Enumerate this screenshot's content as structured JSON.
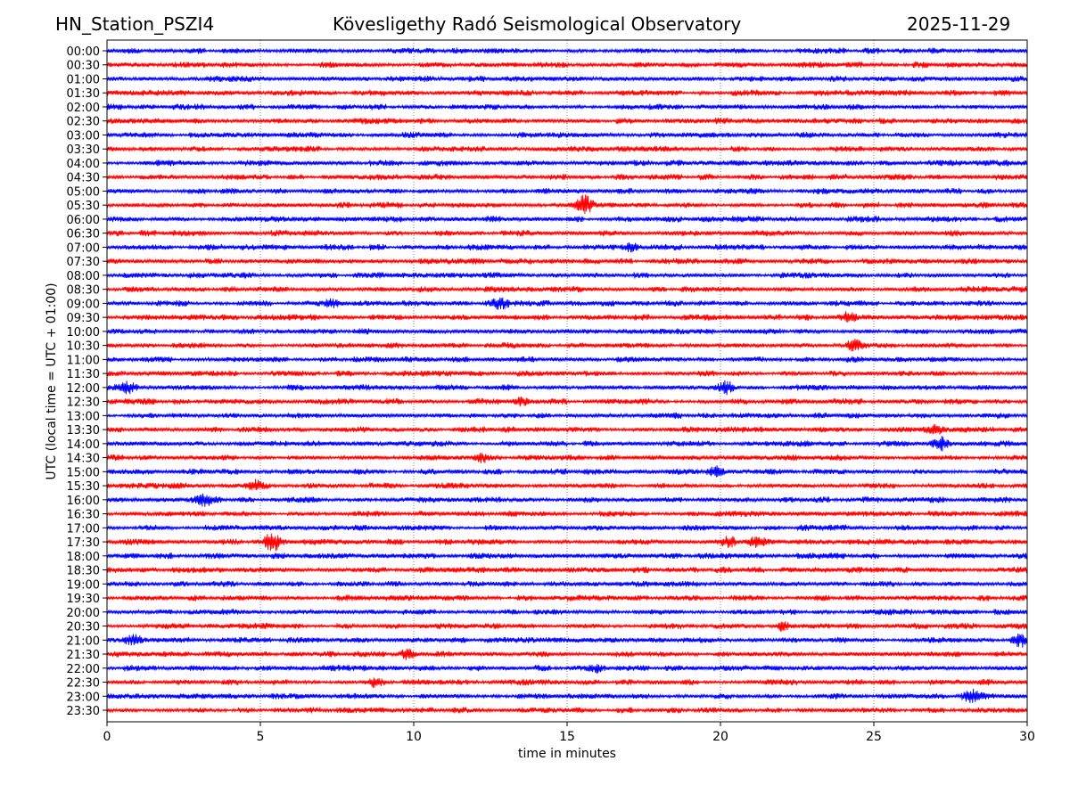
{
  "header": {
    "station": "HN_Station_PSZI4",
    "observatory": "Kövesligethy Radó Seismological Observatory",
    "date": "2025-11-29"
  },
  "chart_data": {
    "type": "line",
    "title": "Kövesligethy Radó Seismological Observatory",
    "xlabel": "time in minutes",
    "ylabel": "UTC (local time = UTC + 01:00)",
    "xlim": [
      0,
      30
    ],
    "xticks": [
      "0",
      "5",
      "10",
      "15",
      "20",
      "25",
      "30"
    ],
    "grid": "vertical dotted at 5-minute intervals",
    "row_labels": [
      "00:00",
      "00:30",
      "01:00",
      "01:30",
      "02:00",
      "02:30",
      "03:00",
      "03:30",
      "04:00",
      "04:30",
      "05:00",
      "05:30",
      "06:00",
      "06:30",
      "07:00",
      "07:30",
      "08:00",
      "08:30",
      "09:00",
      "09:30",
      "10:00",
      "10:30",
      "11:00",
      "11:30",
      "12:00",
      "12:30",
      "13:00",
      "13:30",
      "14:00",
      "14:30",
      "15:00",
      "15:30",
      "16:00",
      "16:30",
      "17:00",
      "17:30",
      "18:00",
      "18:30",
      "19:00",
      "19:30",
      "20:00",
      "20:30",
      "21:00",
      "21:30",
      "22:00",
      "22:30",
      "23:00",
      "23:30"
    ],
    "colors": [
      "#0000ff",
      "#ff0000"
    ],
    "events": [
      {
        "row": "05:30",
        "minute": 15.6,
        "amp": 3.2
      },
      {
        "row": "07:00",
        "minute": 17.1,
        "amp": 1.6
      },
      {
        "row": "09:00",
        "minute": 7.3,
        "amp": 1.5
      },
      {
        "row": "09:00",
        "minute": 12.8,
        "amp": 1.5
      },
      {
        "row": "09:30",
        "minute": 24.2,
        "amp": 1.8
      },
      {
        "row": "10:30",
        "minute": 24.4,
        "amp": 1.6
      },
      {
        "row": "12:00",
        "minute": 0.7,
        "amp": 2.2
      },
      {
        "row": "12:00",
        "minute": 20.2,
        "amp": 2.0
      },
      {
        "row": "12:30",
        "minute": 13.5,
        "amp": 1.4
      },
      {
        "row": "13:30",
        "minute": 27.0,
        "amp": 1.8
      },
      {
        "row": "14:00",
        "minute": 27.2,
        "amp": 2.0
      },
      {
        "row": "14:30",
        "minute": 12.2,
        "amp": 1.6
      },
      {
        "row": "15:00",
        "minute": 19.8,
        "amp": 1.6
      },
      {
        "row": "15:30",
        "minute": 4.8,
        "amp": 1.4
      },
      {
        "row": "16:00",
        "minute": 3.2,
        "amp": 1.6
      },
      {
        "row": "17:30",
        "minute": 5.4,
        "amp": 3.2
      },
      {
        "row": "17:30",
        "minute": 20.3,
        "amp": 1.8
      },
      {
        "row": "17:30",
        "minute": 21.2,
        "amp": 2.0
      },
      {
        "row": "20:30",
        "minute": 22.0,
        "amp": 1.3
      },
      {
        "row": "21:00",
        "minute": 0.9,
        "amp": 1.3
      },
      {
        "row": "21:00",
        "minute": 29.8,
        "amp": 1.6
      },
      {
        "row": "21:30",
        "minute": 9.8,
        "amp": 1.6
      },
      {
        "row": "22:00",
        "minute": 16.0,
        "amp": 1.3
      },
      {
        "row": "22:30",
        "minute": 8.7,
        "amp": 1.4
      },
      {
        "row": "23:00",
        "minute": 28.2,
        "amp": 1.7
      }
    ]
  }
}
